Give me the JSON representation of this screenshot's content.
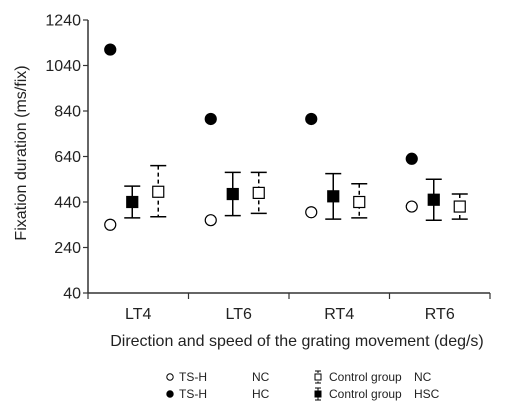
{
  "chart_data": {
    "type": "scatter",
    "categories": [
      "LT4",
      "LT6",
      "RT4",
      "RT6"
    ],
    "xlabel": "Direction and speed of the grating movement (deg/s)",
    "ylabel": "Fixation duration (ms/fix)",
    "ylim": [
      40,
      1240
    ],
    "yticks": [
      40,
      240,
      440,
      640,
      840,
      1040,
      1240
    ],
    "grid": false,
    "legend_position": "bottom",
    "series": [
      {
        "name": "TS-H   NC",
        "marker": "open-circle",
        "values": [
          340,
          360,
          395,
          420
        ]
      },
      {
        "name": "TS-H   HC",
        "marker": "filled-circle",
        "values": [
          1110,
          805,
          805,
          630
        ]
      },
      {
        "name": "Control group   HSC",
        "marker": "filled-square-errorbar",
        "line": "solid",
        "values": [
          440,
          475,
          465,
          450
        ],
        "error_low": [
          370,
          380,
          365,
          360
        ],
        "error_high": [
          510,
          570,
          565,
          540
        ]
      },
      {
        "name": "Control group   NC",
        "marker": "open-square-errorbar",
        "line": "dashed",
        "values": [
          485,
          480,
          440,
          420
        ],
        "error_low": [
          375,
          390,
          370,
          365
        ],
        "error_high": [
          600,
          570,
          520,
          475
        ]
      }
    ],
    "legend": [
      {
        "marker": "open-circle",
        "group": "TS-H",
        "condition": "NC"
      },
      {
        "marker": "filled-circle",
        "group": "TS-H",
        "condition": "HC"
      },
      {
        "marker": "open-square-errorbar",
        "group": "Control group",
        "condition": "NC"
      },
      {
        "marker": "filled-square-errorbar",
        "group": "Control group",
        "condition": "HSC"
      }
    ]
  }
}
